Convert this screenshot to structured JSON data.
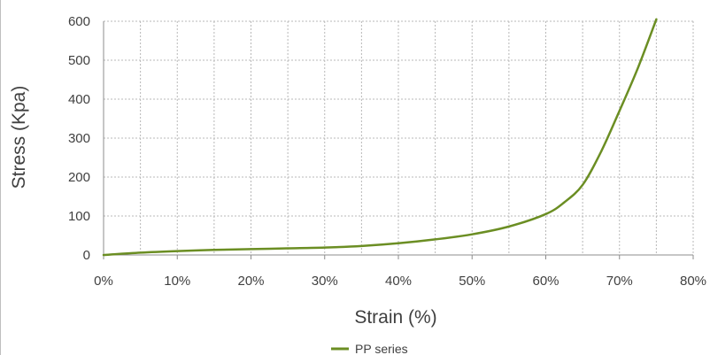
{
  "chart_data": {
    "type": "line",
    "xlabel": "Strain (%)",
    "ylabel": "Stress (Kpa)",
    "xlim": [
      0,
      0.8
    ],
    "ylim": [
      0,
      600
    ],
    "x_ticks": [
      0,
      0.1,
      0.2,
      0.3,
      0.4,
      0.5,
      0.6,
      0.7,
      0.8
    ],
    "x_tick_labels": [
      "0%",
      "10%",
      "20%",
      "30%",
      "40%",
      "50%",
      "60%",
      "70%",
      "80%"
    ],
    "y_ticks": [
      0,
      100,
      200,
      300,
      400,
      500,
      600
    ],
    "y_tick_labels": [
      "0",
      "100",
      "200",
      "300",
      "400",
      "500",
      "600"
    ],
    "grid": true,
    "grid_minor_x": true,
    "legend_position": "bottom-center",
    "series": [
      {
        "name": "PP series",
        "color": "#6b8e23",
        "x": [
          0,
          0.05,
          0.1,
          0.15,
          0.2,
          0.25,
          0.3,
          0.35,
          0.4,
          0.45,
          0.5,
          0.55,
          0.6,
          0.625,
          0.65,
          0.675,
          0.7,
          0.725,
          0.75
        ],
        "y": [
          0,
          6,
          10,
          13,
          15,
          17,
          19,
          23,
          30,
          40,
          53,
          73,
          105,
          135,
          180,
          265,
          370,
          480,
          605
        ]
      }
    ]
  }
}
